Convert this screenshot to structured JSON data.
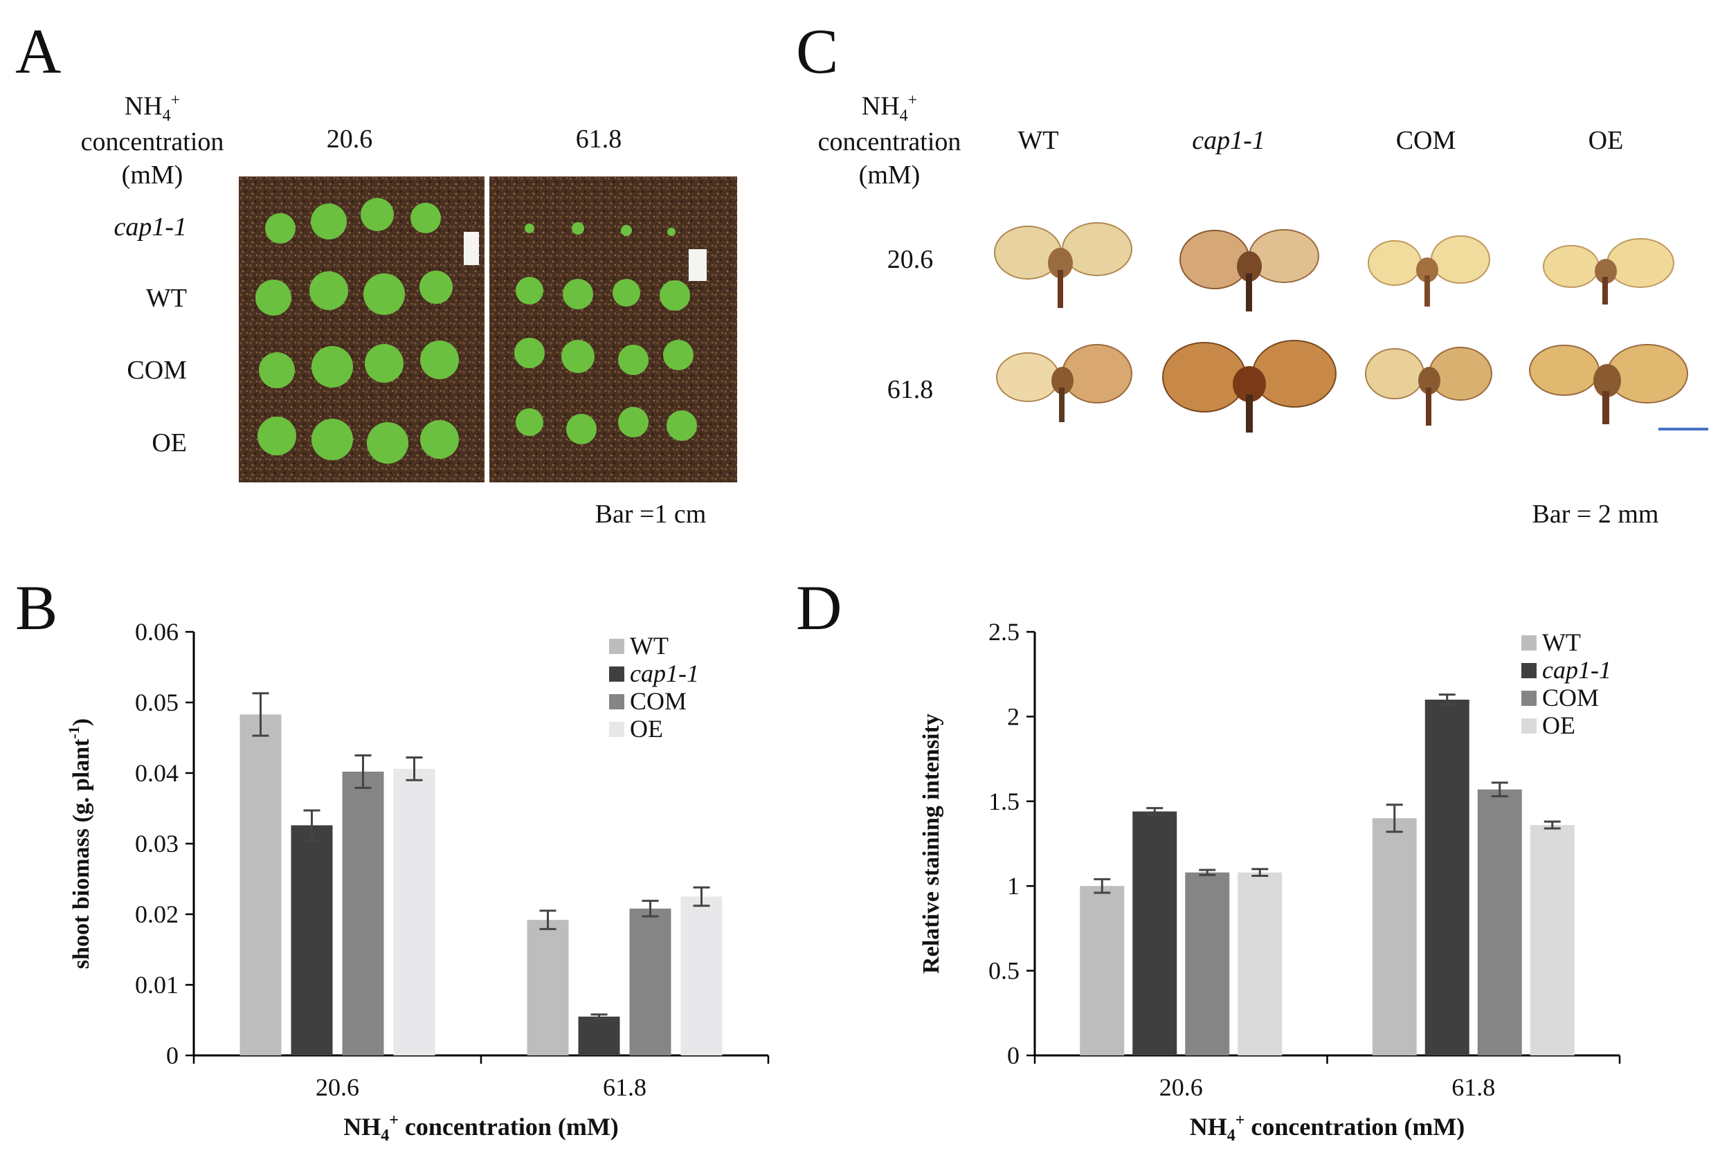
{
  "panel_a": {
    "letter": "A",
    "header_line1": "NH",
    "header_sub": "4",
    "header_sup": "+",
    "header_line2": "concentration",
    "header_line3": "(mM)",
    "columns": [
      "20.6",
      "61.8"
    ],
    "rows": [
      "cap1-1",
      "WT",
      "COM",
      "OE"
    ],
    "scale_bar": "Bar =1 cm"
  },
  "panel_c": {
    "letter": "C",
    "header_line1": "NH",
    "header_sub": "4",
    "header_sup": "+",
    "header_line2": "concentration",
    "header_line3": "(mM)",
    "columns": [
      "WT",
      "cap1-1",
      "COM",
      "OE"
    ],
    "rows": [
      "20.6",
      "61.8"
    ],
    "scale_bar": "Bar = 2 mm",
    "scale_bar_color": "#4472c4"
  },
  "chart_data": [
    {
      "panel": "B",
      "type": "bar",
      "title": "",
      "xlabel_prefix": "NH",
      "xlabel_sub": "4",
      "xlabel_sup": "+",
      "xlabel_suffix": " concentration (mM)",
      "ylabel": "shoot biomass (g. plant",
      "ylabel_sup": "-1",
      "ylabel_close": ")",
      "categories": [
        "20.6",
        "61.8"
      ],
      "ylim": [
        0,
        0.06
      ],
      "yticks": [
        "0",
        "0.01",
        "0.02",
        "0.03",
        "0.04",
        "0.05",
        "0.06"
      ],
      "legend_position": "top-right",
      "series": [
        {
          "name": "WT",
          "italic": false,
          "color": "#bdbdbd",
          "values": [
            0.0483,
            0.0192
          ],
          "errors": [
            0.003,
            0.0013
          ]
        },
        {
          "name": "cap1-1",
          "italic": true,
          "color": "#3f3f3f",
          "values": [
            0.0326,
            0.0055
          ],
          "errors": [
            0.0021,
            0.0003
          ]
        },
        {
          "name": "COM",
          "italic": false,
          "color": "#858585",
          "values": [
            0.0402,
            0.0208
          ],
          "errors": [
            0.0023,
            0.0011
          ]
        },
        {
          "name": "OE",
          "italic": false,
          "color": "#e8e7e9",
          "values": [
            0.0406,
            0.0225
          ],
          "errors": [
            0.0016,
            0.0013
          ]
        }
      ]
    },
    {
      "panel": "D",
      "type": "bar",
      "title": "",
      "xlabel_prefix": "NH",
      "xlabel_sub": "4",
      "xlabel_sup": "+",
      "xlabel_suffix": " concentration (mM)",
      "ylabel": "Relative staining intensity",
      "ylabel_sup": "",
      "ylabel_close": "",
      "categories": [
        "20.6",
        "61.8"
      ],
      "ylim": [
        0,
        2.5
      ],
      "yticks": [
        "0",
        "0.5",
        "1",
        "1.5",
        "2",
        "2.5"
      ],
      "legend_position": "top-right",
      "series": [
        {
          "name": "WT",
          "italic": false,
          "color": "#bdbdbd",
          "values": [
            1.0,
            1.4
          ],
          "errors": [
            0.04,
            0.08
          ]
        },
        {
          "name": "cap1-1",
          "italic": true,
          "color": "#3f3f3f",
          "values": [
            1.44,
            2.1
          ],
          "errors": [
            0.02,
            0.03
          ]
        },
        {
          "name": "COM",
          "italic": false,
          "color": "#858585",
          "values": [
            1.08,
            1.57
          ],
          "errors": [
            0.015,
            0.04
          ]
        },
        {
          "name": "OE",
          "italic": false,
          "color": "#dadada",
          "values": [
            1.08,
            1.36
          ],
          "errors": [
            0.02,
            0.02
          ]
        }
      ]
    }
  ]
}
